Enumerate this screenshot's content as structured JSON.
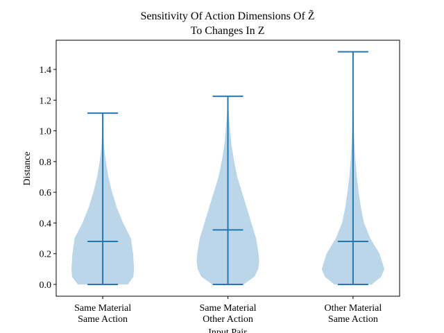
{
  "chart_data": {
    "type": "violin",
    "title": [
      "Sensitivity Of Action Dimensions Of Z̃",
      "To Changes In Z"
    ],
    "x_label": "Input Pair",
    "y_label": "Distance",
    "categories": [
      [
        "Same Material",
        "Same Action"
      ],
      [
        "Same Material",
        "Other Action"
      ],
      [
        "Other Material",
        "Same Action"
      ]
    ],
    "color": "#1f77b4",
    "violins": [
      {
        "min": 0,
        "max": 1.115,
        "mean": 0.28,
        "density_y": [
          0,
          0.05,
          0.1,
          0.2,
          0.3,
          0.4,
          0.5,
          0.6,
          0.7,
          0.8,
          0.9,
          1.0,
          1.115
        ],
        "density": [
          0.8,
          0.98,
          1.0,
          0.97,
          0.9,
          0.65,
          0.45,
          0.3,
          0.18,
          0.1,
          0.04,
          0.02,
          0.005
        ]
      },
      {
        "min": 0,
        "max": 1.225,
        "mean": 0.355,
        "density_y": [
          0,
          0.05,
          0.1,
          0.15,
          0.2,
          0.3,
          0.4,
          0.5,
          0.6,
          0.7,
          0.8,
          0.9,
          1.0,
          1.1,
          1.225
        ],
        "density": [
          0.5,
          0.85,
          0.97,
          1.0,
          0.98,
          0.9,
          0.75,
          0.6,
          0.45,
          0.3,
          0.2,
          0.12,
          0.07,
          0.03,
          0.005
        ]
      },
      {
        "min": 0,
        "max": 1.515,
        "mean": 0.28,
        "density_y": [
          0,
          0.05,
          0.1,
          0.2,
          0.3,
          0.4,
          0.5,
          0.6,
          0.7,
          0.8,
          0.9,
          1.0,
          1.2,
          1.515
        ],
        "density": [
          0.6,
          0.9,
          1.0,
          0.85,
          0.55,
          0.35,
          0.25,
          0.18,
          0.12,
          0.08,
          0.05,
          0.03,
          0.01,
          0.002
        ]
      }
    ],
    "xlim": [
      0.628,
      3.372
    ],
    "ylim": [
      -0.077,
      1.59
    ],
    "yticks": [
      {
        "value": 0,
        "label": "0.0"
      },
      0.2,
      0.4,
      0.6,
      0.8,
      {
        "value": 1,
        "label": "1.0"
      },
      1.2,
      1.4
    ]
  }
}
